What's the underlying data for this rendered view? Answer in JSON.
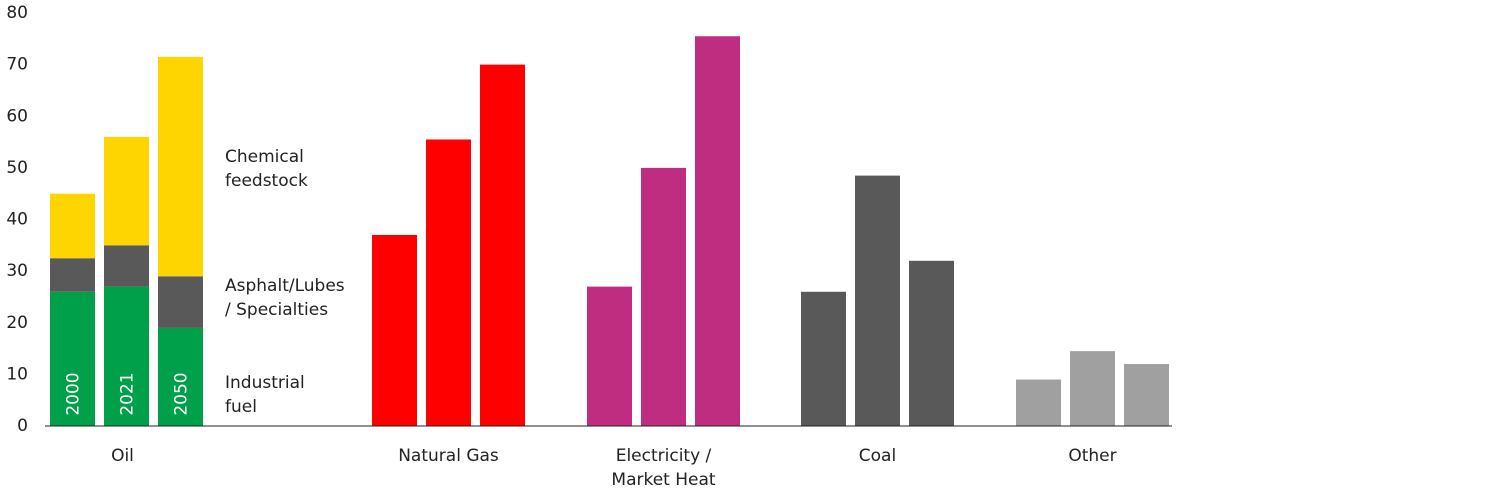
{
  "chart_data": {
    "type": "bar",
    "categories": [
      "Oil",
      "Natural Gas",
      "Electricity / Market Heat",
      "Coal",
      "Other"
    ],
    "years": [
      "2000",
      "2021",
      "2050"
    ],
    "groups": [
      {
        "series": [
          {
            "name": "Industrial fuel",
            "color": "#00a04a",
            "values": [
              26,
              27,
              19
            ]
          },
          {
            "name": "Asphalt/Lubes / Specialties",
            "color": "#595959",
            "values": [
              6.5,
              8,
              10
            ]
          },
          {
            "name": "Chemical feedstock",
            "color": "#ffd500",
            "values": [
              12.5,
              21,
              42.5
            ]
          }
        ]
      },
      {
        "series": [
          {
            "color": "#ff0000",
            "values": [
              37,
              55.5,
              70
            ]
          }
        ]
      },
      {
        "series": [
          {
            "color": "#be2d80",
            "values": [
              27,
              50,
              75.5
            ]
          }
        ]
      },
      {
        "series": [
          {
            "color": "#595959",
            "values": [
              26,
              48.5,
              32
            ]
          }
        ]
      },
      {
        "series": [
          {
            "color": "#a0a0a0",
            "values": [
              9,
              14.5,
              12
            ]
          }
        ]
      }
    ],
    "ylim": [
      0,
      80
    ],
    "yticks": [
      0,
      10,
      20,
      30,
      40,
      50,
      60,
      70,
      80
    ]
  }
}
